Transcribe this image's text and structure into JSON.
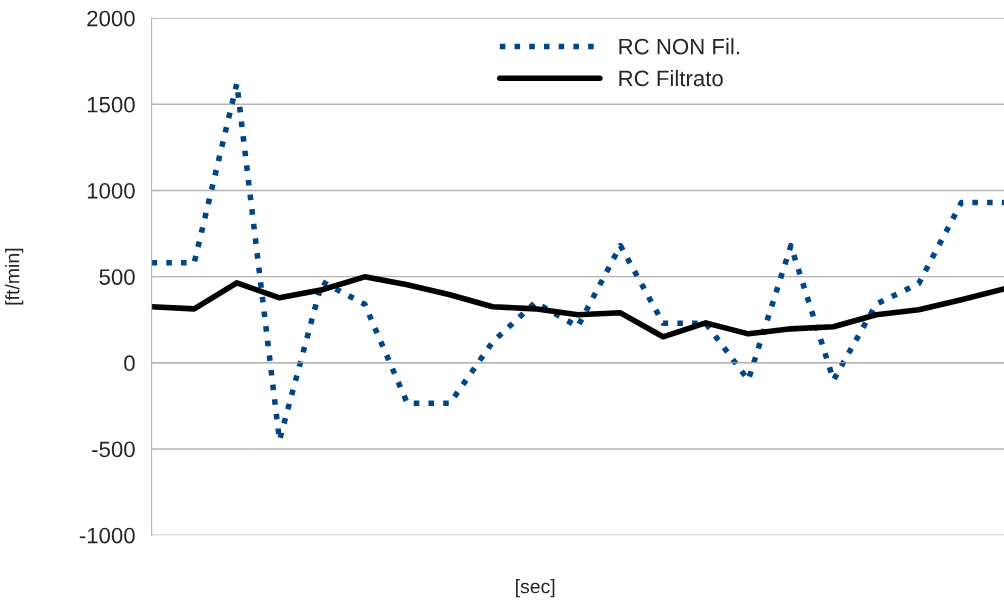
{
  "chart_data": {
    "type": "line",
    "xlabel": "[sec]",
    "ylabel": "[ft/min]",
    "categories": [
      null,
      null,
      null,
      null,
      null,
      null,
      null,
      null,
      null,
      null,
      null,
      null,
      null,
      null,
      null,
      null,
      null,
      null,
      null,
      null,
      null
    ],
    "series": [
      {
        "name": "RC NON Fil.",
        "color": "#004586",
        "line_style": "dotted",
        "values": [
          580,
          580,
          1620,
          -450,
          470,
          340,
          -235,
          -235,
          120,
          350,
          210,
          680,
          230,
          230,
          -100,
          680,
          -100,
          340,
          460,
          930,
          930
        ]
      },
      {
        "name": "RC Filtrato",
        "color": "#000000",
        "line_style": "solid",
        "values": [
          325,
          313,
          464,
          377,
          424,
          499,
          453,
          395,
          325,
          313,
          279,
          290,
          151,
          232,
          168,
          197,
          209,
          279,
          308,
          366,
          429
        ]
      }
    ],
    "ylim": [
      -1000,
      2000
    ],
    "yticks": [
      -1000,
      -500,
      0,
      500,
      1000,
      1500,
      2000
    ],
    "grid": "y",
    "legend": "top"
  }
}
